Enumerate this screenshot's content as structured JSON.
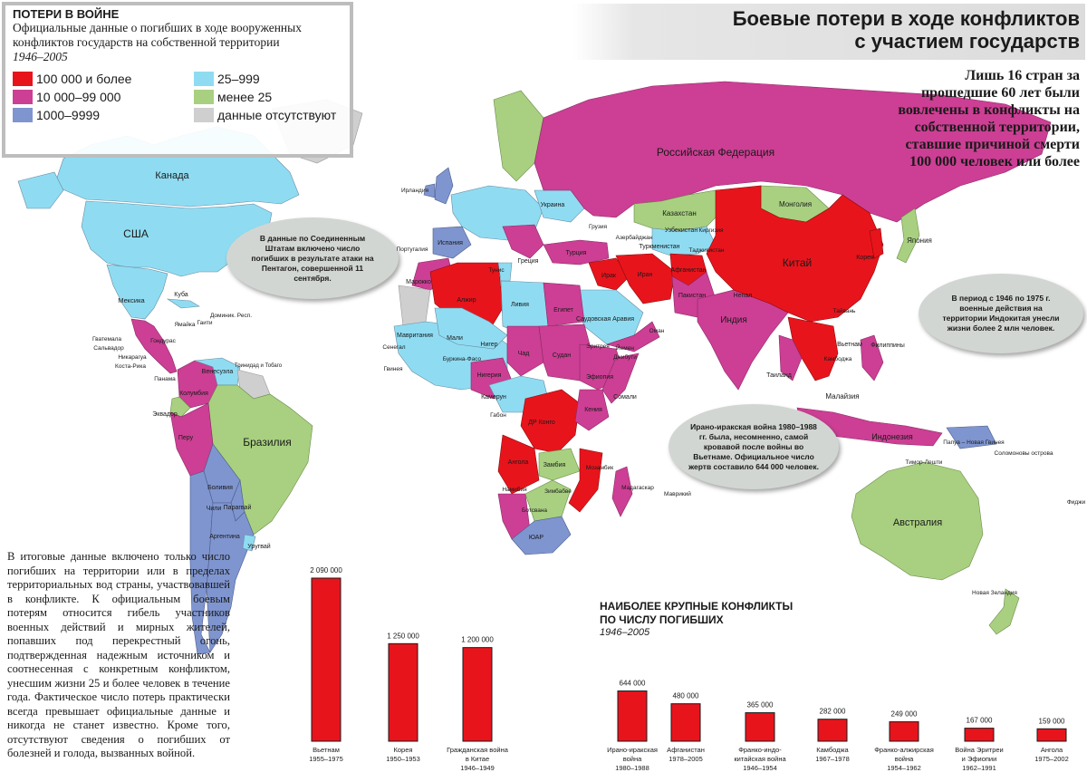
{
  "legend": {
    "title": "ПОТЕРИ В ВОЙНЕ",
    "description": "Официальные данные о погибших в ходе вооруженных конфликтов государств на собственной территории",
    "years": "1946–2005",
    "items": [
      {
        "label": "100 000 и более",
        "color": "#e8141c"
      },
      {
        "label": "25–999",
        "color": "#8fdcf2"
      },
      {
        "label": "10 000–99 000",
        "color": "#cc3f94"
      },
      {
        "label": "менее 25",
        "color": "#a8d080"
      },
      {
        "label": "1000–9999",
        "color": "#7f95cf"
      },
      {
        "label": "данные отсутствуют",
        "color": "#cfcfcf"
      }
    ]
  },
  "title": {
    "line1": "Боевые потери в ходе конфликтов",
    "line2": "с участием государств"
  },
  "side_note": "Лишь 16 стран за прошедшие 60 лет были вовлечены в конфликты на собственной территории, ставшие причиной смерти 100 000 человек или более",
  "callouts": {
    "usa": "В данные по Соединенным Штатам включено число погибших в результате атаки на Пентагон, совершенной 11 сентября.",
    "iran_iraq": "Ирано-иракская война 1980–1988 гг. была, несомненно, самой кровавой после войны во Вьетнаме. Официальное число жертв составило 644 000 человек.",
    "indochina": "В период с 1946 по 1975 г. военные действия на территории Индокитая унесли жизни более 2 млн человек."
  },
  "body_text": "В итоговые данные включено только число погибших на территории или в пределах территориальных вод страны, участвовавшей в конфликте. К официальным боевым потерям относится гибель участников военных действий и мирных жителей, попавших под перекрестный огонь, подтвержденная надежным источником и соотнесенная с конкретным конфликтом, унесшим жизни 25 и более человек в течение года. Фактическое число потерь практически всегда превышает официальные данные и никогда не станет известно. Кроме того, отсутствуют сведения о погибших от болезней и голода, вызванных войной.",
  "map_labels": {
    "canada": "Канада",
    "usa": "США",
    "mexico": "Мексика",
    "brazil": "Бразилия",
    "russia": "Российская Федерация",
    "china": "Китай",
    "india": "Индия",
    "australia": "Австралия",
    "kazakhstan": "Казахстан",
    "mongolia": "Монголия",
    "japan": "Япония",
    "iran": "Иран",
    "iraq": "Ирак",
    "afghanistan": "Афганистан",
    "pakistan": "Пакистан",
    "algeria": "Алжир",
    "libya": "Ливия",
    "egypt": "Египет",
    "sudan": "Судан",
    "ethiopia": "Эфиопия",
    "angola": "Ангола",
    "mozambique": "Мозамбик",
    "south_africa": "ЮАР",
    "nigeria": "Нигерия",
    "indonesia": "Индонезия",
    "vietnam": "Вьетнам",
    "philippines": "Филиппины",
    "colombia": "Колумбия",
    "peru": "Перу",
    "argentina": "Аргентина",
    "chile": "Чили",
    "bolivia": "Боливия",
    "venezuela": "Венесуэла",
    "turkey": "Турция",
    "saudi_arabia": "Саудовская Аравия",
    "madagascar": "Мадагаскар",
    "new_zealand": "Новая Зеландия",
    "dr_congo": "ДР Конго",
    "somalia": "Сомали",
    "kenya": "Кения",
    "chad": "Чад",
    "mali": "Мали",
    "niger": "Нигер",
    "mauritania": "Мавритания",
    "ukraine": "Украина",
    "greece": "Греция",
    "spain": "Испания",
    "ireland": "Ирландия",
    "uzbekistan": "Узбекистан",
    "turkmenistan": "Туркменистан",
    "nepal": "Непал",
    "thailand": "Таиланд",
    "korea": "Корея",
    "malaysia": "Малайзия",
    "papua": "Папуа – Новая Гвинея",
    "mauritius": "Маврикий",
    "cuba": "Куба",
    "morocco": "Марокко",
    "yemen": "Йемен",
    "oman": "Оман",
    "tunisia": "Тунис",
    "portugal": "Португалия",
    "paraguay": "Парагвай",
    "uruguay": "Уругвай",
    "ecuador": "Эквадор",
    "cameroon": "Камерун",
    "gabon": "Габон",
    "zambia": "Замбия",
    "zimbabwe": "Зимбабве",
    "namibia": "Намибия",
    "botswana": "Ботсвана",
    "eritrea": "Эритрея",
    "djibouti": "Джибути",
    "burkina": "Буркина-Фасо",
    "guinea": "Гвинея",
    "senegal": "Сенегал",
    "panama": "Панама",
    "nicaragua": "Никарагуа",
    "honduras": "Гондурас",
    "guatemala": "Гватемала",
    "salvador": "Сальвадор",
    "costa_rica": "Коста-Рика",
    "haiti": "Гаити",
    "jamaica": "Ямайка",
    "dominican": "Доминик. Респ.",
    "trinidad": "Тринидад и Тобаго",
    "solomon": "Соломоновы острова",
    "timor": "Тимор-Лешти",
    "fiji": "Фиджи",
    "taiwan": "Тайвань",
    "cambodia": "Камбоджа",
    "tajikistan": "Таджикистан",
    "kyrgyzstan": "Киргизия",
    "georgia": "Грузия",
    "azerbaijan": "Азербайджан"
  },
  "chart_data": {
    "type": "bar",
    "title": "НАИБОЛЕЕ КРУПНЫЕ КОНФЛИКТЫ ПО ЧИСЛУ ПОГИБШИХ",
    "subtitle": "1946–2005",
    "series_color": "#e8141c",
    "categories": [
      {
        "name": "Вьетнам",
        "years": "1955–1975"
      },
      {
        "name": "Корея",
        "years": "1950–1953"
      },
      {
        "name": "Гражданская война в Китае",
        "years": "1946–1949"
      },
      {
        "name": "Ирано-иракская война",
        "years": "1980–1988"
      },
      {
        "name": "Афганистан",
        "years": "1978–2005"
      },
      {
        "name": "Франко-индо-китайская война",
        "years": "1946–1954"
      },
      {
        "name": "Камбоджа",
        "years": "1967–1978"
      },
      {
        "name": "Франко-алжирская война",
        "years": "1954–1962"
      },
      {
        "name": "Война Эритреи и Эфиопии",
        "years": "1962–1991"
      },
      {
        "name": "Ангола",
        "years": "1975–2002"
      }
    ],
    "values": [
      2090000,
      1250000,
      1200000,
      644000,
      480000,
      365000,
      282000,
      249000,
      167000,
      159000
    ],
    "value_labels": [
      "2 090 000",
      "1 250 000",
      "1 200 000",
      "644 000",
      "480 000",
      "365 000",
      "282 000",
      "249 000",
      "167 000",
      "159 000"
    ],
    "category_label_lines": [
      [
        "Вьетнам",
        "1955–1975"
      ],
      [
        "Корея",
        "1950–1953"
      ],
      [
        "Гражданская война",
        "в Китае",
        "1946–1949"
      ],
      [
        "Ирано-иракская",
        "война",
        "1980–1988"
      ],
      [
        "Афганистан",
        "1978–2005"
      ],
      [
        "Франко-индо-",
        "китайская война",
        "1946–1954"
      ],
      [
        "Камбоджа",
        "1967–1978"
      ],
      [
        "Франко-алжирская",
        "война",
        "1954–1962"
      ],
      [
        "Война Эритреи",
        "и Эфиопии",
        "1962–1991"
      ],
      [
        "Ангола",
        "1975–2002"
      ]
    ]
  }
}
